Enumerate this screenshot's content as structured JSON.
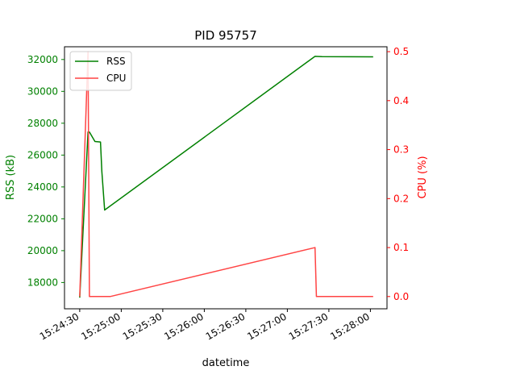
{
  "chart_data": {
    "type": "line",
    "title": "PID 95757",
    "xlabel": "datetime",
    "ylabel_left": "RSS (kB)",
    "ylabel_right": "CPU (%)",
    "x_ticks": [
      "15:24:30",
      "15:25:00",
      "15:25:30",
      "15:26:00",
      "15:26:30",
      "15:27:00",
      "15:27:30",
      "15:28:00"
    ],
    "y_left_ticks": [
      18000,
      20000,
      22000,
      24000,
      26000,
      28000,
      30000,
      32000
    ],
    "y_right_ticks": [
      "0.0",
      "0.1",
      "0.2",
      "0.3",
      "0.4",
      "0.5"
    ],
    "xlim": [
      "15:24:19",
      "15:28:12"
    ],
    "ylim_left": [
      16350,
      32800
    ],
    "ylim_right": [
      -0.025,
      0.51
    ],
    "legend_placement": "top-left",
    "grid": false,
    "series": [
      {
        "name": "RSS",
        "axis": "left",
        "color": "#008000",
        "points": [
          [
            "15:24:30",
            17050
          ],
          [
            "15:24:36",
            27450
          ],
          [
            "15:24:37",
            27450
          ],
          [
            "15:24:41",
            26850
          ],
          [
            "15:24:45",
            26820
          ],
          [
            "15:24:46",
            24950
          ],
          [
            "15:24:48",
            22550
          ],
          [
            "15:27:20",
            32200
          ],
          [
            "15:27:25",
            32180
          ],
          [
            "15:28:02",
            32170
          ]
        ]
      },
      {
        "name": "CPU",
        "axis": "right",
        "color": "#ff4444",
        "points": [
          [
            "15:24:30",
            0.0
          ],
          [
            "15:24:36",
            0.5
          ],
          [
            "15:24:37",
            0.0
          ],
          [
            "15:24:52",
            0.0
          ],
          [
            "15:27:20",
            0.1
          ],
          [
            "15:27:21",
            0.0
          ],
          [
            "15:28:02",
            0.0
          ]
        ]
      }
    ]
  }
}
